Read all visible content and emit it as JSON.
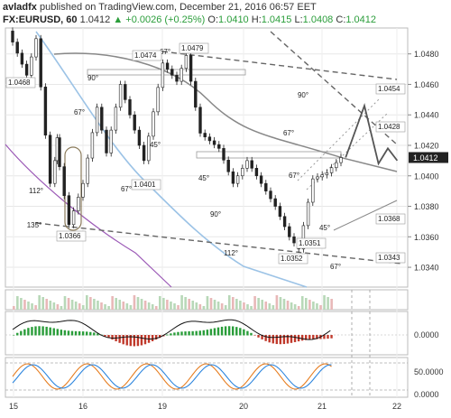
{
  "header": {
    "author": "avladfx",
    "published": "published on TradingView.com, December 21, 2016 06:57 EET",
    "symbol": "FX:EURUSD, 60",
    "last": "1.0412",
    "change": "+0.0026 (+0.25%)",
    "ohlc": {
      "o_label": "O:",
      "o": "1.0410",
      "h_label": "H:",
      "h": "1.0415",
      "l_label": "L:",
      "l": "1.0408",
      "c_label": "C:",
      "c": "1.0412"
    }
  },
  "colors": {
    "up": "#2a9d3a",
    "down": "#c0392b",
    "fast_line": "#e67e22",
    "slow_line": "#2e86de",
    "ma_blue": "#9cc3e6",
    "ma_purple": "#9b59b6",
    "ma_grey": "#888888"
  },
  "chart_data": {
    "type": "line",
    "y_axis_ticks": [
      "1.0480",
      "1.0460",
      "1.0440",
      "1.0420",
      "1.0400",
      "1.0380",
      "1.0360",
      "1.0340"
    ],
    "x_axis_ticks": [
      "15",
      "16",
      "19",
      "20",
      "21",
      "22"
    ],
    "ylim": [
      1.0327,
      1.0497
    ],
    "current_price_label": "1.0412",
    "path": [
      [
        0.0,
        1.0495
      ],
      [
        2.0,
        1.0466
      ],
      [
        3.0,
        1.049
      ],
      [
        4.5,
        1.0395
      ],
      [
        5.0,
        1.0425
      ],
      [
        6.5,
        1.0368
      ],
      [
        8.0,
        1.0395
      ],
      [
        9.5,
        1.0445
      ],
      [
        10.5,
        1.0415
      ],
      [
        12.0,
        1.046
      ],
      [
        14.5,
        1.041
      ],
      [
        16.5,
        1.0474
      ],
      [
        18.0,
        1.0462
      ],
      [
        19.0,
        1.0479
      ],
      [
        20.5,
        1.0428
      ],
      [
        22.5,
        1.0418
      ],
      [
        24.0,
        1.0395
      ],
      [
        25.5,
        1.041
      ],
      [
        27.0,
        1.0395
      ],
      [
        28.5,
        1.038
      ],
      [
        30.0,
        1.036
      ],
      [
        31.0,
        1.0352
      ],
      [
        32.5,
        1.0398
      ],
      [
        34.0,
        1.0402
      ],
      [
        35.5,
        1.0412
      ]
    ],
    "projection": [
      [
        35.5,
        1.0412
      ],
      [
        37.5,
        1.0446
      ],
      [
        39.0,
        1.0408
      ],
      [
        40.0,
        1.0418
      ],
      [
        41.0,
        1.041
      ]
    ],
    "annotations": {
      "price_labels": [
        "1.0468",
        "1.0474",
        "1.0479",
        "1.0401",
        "1.0366",
        "1.0352",
        "1.0454",
        "1.0428",
        "1.0368",
        "1.0351",
        "1.0343"
      ],
      "angle_labels": [
        "90°",
        "67°",
        "67°",
        "45°",
        "67°",
        "112°",
        "135°",
        "67°",
        "90°",
        "45°",
        "67°",
        "90°",
        "112°",
        "45°",
        "67°"
      ]
    }
  },
  "volume_panel": {
    "type": "bar"
  },
  "macd_panel": {
    "type": "bar",
    "axis_label": "0.0000"
  },
  "stoch_panel": {
    "type": "line",
    "axis_labels": [
      "50.0000",
      "0.0000"
    ]
  }
}
